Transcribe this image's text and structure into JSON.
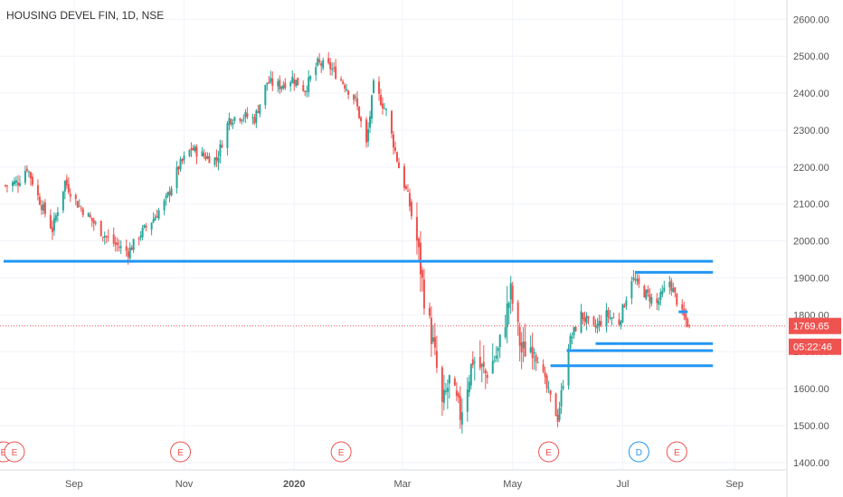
{
  "chart_data": {
    "type": "candlestick",
    "title": "HOUSING DEVEL FIN, 1D, NSE",
    "ylim": [
      1380,
      2640
    ],
    "y_ticks": [
      1400,
      1500,
      1600,
      1700,
      1800,
      1900,
      2000,
      2100,
      2200,
      2300,
      2400,
      2500,
      2600
    ],
    "y_tick_labels": [
      "1400.00",
      "1500.00",
      "1600.00",
      "1700.00",
      "1800.00",
      "1900.00",
      "2000.00",
      "2100.00",
      "2200.00",
      "2300.00",
      "2400.00",
      "2500.00",
      "2600.00"
    ],
    "x_range": [
      "2019-07-22",
      "2020-09-30"
    ],
    "x_ticks": [
      {
        "label": "Sep",
        "date": "2019-09-01"
      },
      {
        "label": "Nov",
        "date": "2019-11-01"
      },
      {
        "label": "2020",
        "date": "2020-01-01"
      },
      {
        "label": "Mar",
        "date": "2020-03-01"
      },
      {
        "label": "May",
        "date": "2020-05-01"
      },
      {
        "label": "Jul",
        "date": "2020-07-01"
      },
      {
        "label": "Sep",
        "date": "2020-09-01"
      }
    ],
    "price_path": [
      [
        "2019-07-25",
        2150
      ],
      [
        "2019-08-01",
        2160
      ],
      [
        "2019-08-06",
        2200
      ],
      [
        "2019-08-12",
        2120
      ],
      [
        "2019-08-20",
        2030
      ],
      [
        "2019-08-27",
        2160
      ],
      [
        "2019-09-03",
        2100
      ],
      [
        "2019-09-10",
        2060
      ],
      [
        "2019-09-17",
        2020
      ],
      [
        "2019-09-24",
        1990
      ],
      [
        "2019-10-01",
        1970
      ],
      [
        "2019-10-08",
        2020
      ],
      [
        "2019-10-15",
        2060
      ],
      [
        "2019-10-22",
        2110
      ],
      [
        "2019-10-29",
        2200
      ],
      [
        "2019-11-05",
        2250
      ],
      [
        "2019-11-12",
        2230
      ],
      [
        "2019-11-19",
        2220
      ],
      [
        "2019-11-26",
        2330
      ],
      [
        "2019-12-03",
        2340
      ],
      [
        "2019-12-10",
        2330
      ],
      [
        "2019-12-17",
        2430
      ],
      [
        "2019-12-24",
        2420
      ],
      [
        "2019-12-31",
        2440
      ],
      [
        "2020-01-07",
        2410
      ],
      [
        "2020-01-14",
        2480
      ],
      [
        "2020-01-21",
        2470
      ],
      [
        "2020-01-28",
        2430
      ],
      [
        "2020-02-04",
        2380
      ],
      [
        "2020-02-10",
        2260
      ],
      [
        "2020-02-14",
        2420
      ],
      [
        "2020-02-21",
        2350
      ],
      [
        "2020-02-28",
        2200
      ],
      [
        "2020-03-04",
        2120
      ],
      [
        "2020-03-09",
        2000
      ],
      [
        "2020-03-13",
        1850
      ],
      [
        "2020-03-18",
        1720
      ],
      [
        "2020-03-23",
        1550
      ],
      [
        "2020-03-27",
        1620
      ],
      [
        "2020-04-02",
        1530
      ],
      [
        "2020-04-09",
        1680
      ],
      [
        "2020-04-16",
        1640
      ],
      [
        "2020-04-23",
        1700
      ],
      [
        "2020-04-30",
        1860
      ],
      [
        "2020-05-06",
        1700
      ],
      [
        "2020-05-13",
        1720
      ],
      [
        "2020-05-20",
        1600
      ],
      [
        "2020-05-26",
        1520
      ],
      [
        "2020-06-01",
        1720
      ],
      [
        "2020-06-08",
        1800
      ],
      [
        "2020-06-15",
        1760
      ],
      [
        "2020-06-22",
        1800
      ],
      [
        "2020-06-29",
        1780
      ],
      [
        "2020-07-06",
        1900
      ],
      [
        "2020-07-13",
        1860
      ],
      [
        "2020-07-20",
        1830
      ],
      [
        "2020-07-27",
        1890
      ],
      [
        "2020-08-03",
        1800
      ],
      [
        "2020-08-07",
        1769.65
      ]
    ],
    "horizontal_levels": [
      {
        "price": 1945,
        "from": "2019-07-24",
        "to": "2020-08-20"
      },
      {
        "price": 1915,
        "from": "2020-07-08",
        "to": "2020-08-20"
      },
      {
        "price": 1808,
        "from": "2020-08-01",
        "to": "2020-08-06"
      },
      {
        "price": 1722,
        "from": "2020-06-16",
        "to": "2020-08-20"
      },
      {
        "price": 1703,
        "from": "2020-05-31",
        "to": "2020-08-20"
      },
      {
        "price": 1662,
        "from": "2020-05-22",
        "to": "2020-08-20"
      }
    ],
    "last_price": 1769.65,
    "last_price_label": "1769.65",
    "countdown": "05:22:46",
    "events": [
      {
        "label": "E",
        "date": "2019-07-24",
        "type": "earnings"
      },
      {
        "label": "E",
        "date": "2019-07-30",
        "type": "earnings"
      },
      {
        "label": "E",
        "date": "2019-10-30",
        "type": "earnings"
      },
      {
        "label": "E",
        "date": "2020-01-27",
        "type": "earnings"
      },
      {
        "label": "E",
        "date": "2020-05-21",
        "type": "earnings"
      },
      {
        "label": "D",
        "date": "2020-07-10",
        "type": "dividend"
      },
      {
        "label": "E",
        "date": "2020-07-31",
        "type": "earnings"
      }
    ],
    "colors": {
      "up": "#26a69a",
      "down": "#ef5350",
      "level": "#2196f3",
      "dividend": "#2196f3",
      "grid": "#f0f3fa"
    }
  }
}
